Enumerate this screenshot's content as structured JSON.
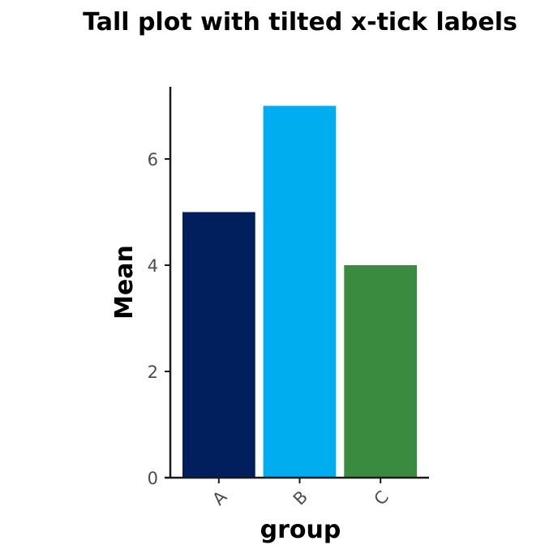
{
  "chart_data": {
    "type": "bar",
    "title": "Tall plot with tilted x-tick labels",
    "xlabel": "group",
    "ylabel": "Mean",
    "categories": [
      "A",
      "B",
      "C"
    ],
    "values": [
      5,
      7,
      4
    ],
    "colors": [
      "#001F5C",
      "#00AEEF",
      "#3A8A3F"
    ],
    "ylim": [
      0,
      7.3
    ],
    "yticks": [
      0,
      2,
      4,
      6
    ],
    "xtick_rotation": -45,
    "grid": false,
    "legend": "none"
  }
}
